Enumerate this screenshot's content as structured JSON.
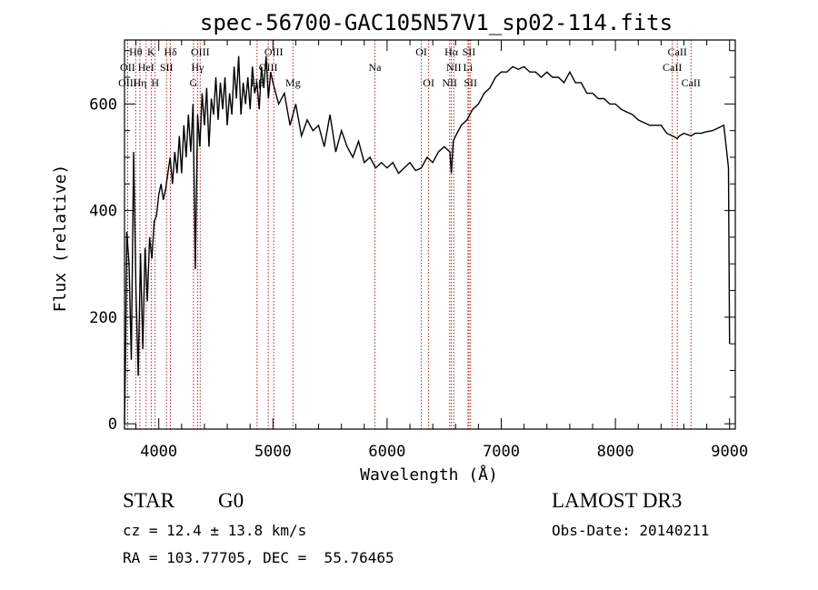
{
  "chart_data": {
    "type": "line",
    "title": "spec-56700-GAC105N57V1_sp02-114.fits",
    "xlabel": "Wavelength (Å)",
    "ylabel": "Flux (relative)",
    "xlim": [
      3700,
      9050
    ],
    "ylim": [
      -10,
      720
    ],
    "xticks": [
      4000,
      5000,
      6000,
      7000,
      8000,
      9000
    ],
    "yticks": [
      0,
      200,
      400,
      600
    ],
    "series": [
      {
        "name": "flux",
        "x": [
          3700,
          3710,
          3720,
          3740,
          3760,
          3780,
          3800,
          3820,
          3840,
          3860,
          3880,
          3900,
          3920,
          3940,
          3960,
          3980,
          4000,
          4020,
          4040,
          4060,
          4080,
          4100,
          4120,
          4140,
          4160,
          4180,
          4200,
          4220,
          4240,
          4260,
          4280,
          4300,
          4320,
          4340,
          4360,
          4380,
          4400,
          4420,
          4440,
          4460,
          4480,
          4500,
          4520,
          4540,
          4560,
          4580,
          4600,
          4620,
          4640,
          4660,
          4680,
          4700,
          4720,
          4740,
          4760,
          4780,
          4800,
          4820,
          4840,
          4860,
          4880,
          4900,
          4920,
          4940,
          4960,
          4980,
          5000,
          5050,
          5100,
          5150,
          5200,
          5250,
          5300,
          5350,
          5400,
          5450,
          5500,
          5550,
          5600,
          5650,
          5700,
          5750,
          5800,
          5850,
          5900,
          5950,
          6000,
          6050,
          6100,
          6150,
          6200,
          6250,
          6300,
          6350,
          6400,
          6450,
          6500,
          6550,
          6563,
          6580,
          6600,
          6650,
          6700,
          6750,
          6800,
          6850,
          6900,
          6950,
          7000,
          7050,
          7100,
          7150,
          7200,
          7250,
          7300,
          7350,
          7400,
          7450,
          7500,
          7550,
          7600,
          7650,
          7700,
          7750,
          7800,
          7850,
          7900,
          7950,
          8000,
          8050,
          8100,
          8150,
          8200,
          8250,
          8300,
          8350,
          8400,
          8450,
          8500,
          8542,
          8560,
          8600,
          8662,
          8700,
          8750,
          8800,
          8850,
          8900,
          8950,
          8990,
          9000
        ],
        "values": [
          0,
          150,
          360,
          300,
          120,
          510,
          250,
          90,
          320,
          140,
          330,
          230,
          350,
          310,
          380,
          390,
          430,
          450,
          420,
          440,
          470,
          500,
          450,
          510,
          470,
          540,
          470,
          560,
          500,
          580,
          510,
          600,
          290,
          580,
          520,
          620,
          560,
          630,
          520,
          610,
          580,
          650,
          570,
          640,
          590,
          650,
          560,
          620,
          580,
          670,
          610,
          690,
          580,
          640,
          600,
          650,
          590,
          670,
          620,
          640,
          590,
          670,
          630,
          690,
          610,
          660,
          640,
          600,
          620,
          560,
          600,
          540,
          570,
          550,
          560,
          520,
          580,
          510,
          550,
          520,
          500,
          530,
          490,
          500,
          480,
          490,
          480,
          490,
          470,
          480,
          490,
          475,
          480,
          500,
          490,
          510,
          520,
          510,
          470,
          530,
          540,
          560,
          570,
          590,
          600,
          620,
          630,
          650,
          660,
          660,
          670,
          665,
          670,
          660,
          660,
          650,
          660,
          650,
          650,
          640,
          660,
          640,
          640,
          620,
          620,
          610,
          610,
          600,
          600,
          590,
          585,
          580,
          570,
          565,
          560,
          560,
          560,
          545,
          540,
          535,
          540,
          545,
          540,
          545,
          545,
          548,
          550,
          555,
          560,
          480,
          150
        ]
      }
    ],
    "emission_lines": [
      {
        "label": "Hθ",
        "x": 3798,
        "row": 1
      },
      {
        "label": "K",
        "x": 3934,
        "row": 1
      },
      {
        "label": "Hδ",
        "x": 4102,
        "row": 1
      },
      {
        "label": "OIII",
        "x": 4363,
        "row": 1
      },
      {
        "label": "OIII",
        "x": 5007,
        "row": 1
      },
      {
        "label": "OI",
        "x": 6300,
        "row": 1
      },
      {
        "label": "Hα",
        "x": 6563,
        "row": 1
      },
      {
        "label": "SII",
        "x": 6717,
        "row": 1
      },
      {
        "label": "CaII",
        "x": 8542,
        "row": 1
      },
      {
        "label": "OII",
        "x": 3727,
        "row": 2
      },
      {
        "label": "HeI",
        "x": 3889,
        "row": 2
      },
      {
        "label": "SII",
        "x": 4068,
        "row": 2
      },
      {
        "label": "Hγ",
        "x": 4340,
        "row": 2
      },
      {
        "label": "OIII",
        "x": 4959,
        "row": 2
      },
      {
        "label": "Na",
        "x": 5893,
        "row": 2
      },
      {
        "label": "NII",
        "x": 6584,
        "row": 2
      },
      {
        "label": "Li",
        "x": 6708,
        "row": 2
      },
      {
        "label": "CaII",
        "x": 8498,
        "row": 2
      },
      {
        "label": "OIII",
        "x": 3727,
        "row": 3
      },
      {
        "label": "Hη",
        "x": 3835,
        "row": 3
      },
      {
        "label": "H",
        "x": 3968,
        "row": 3
      },
      {
        "label": "G",
        "x": 4304,
        "row": 3
      },
      {
        "label": "Hβ",
        "x": 4861,
        "row": 3
      },
      {
        "label": "Mg",
        "x": 5175,
        "row": 3
      },
      {
        "label": "OI",
        "x": 6364,
        "row": 3
      },
      {
        "label": "NII",
        "x": 6548,
        "row": 3
      },
      {
        "label": "SII",
        "x": 6731,
        "row": 3
      },
      {
        "label": "CaII",
        "x": 8662,
        "row": 3
      }
    ]
  },
  "info": {
    "class_label": "STAR",
    "subclass": "G0",
    "survey": "LAMOST DR3",
    "cz": "cz = 12.4 ± 13.8 km/s",
    "obs_date": "Obs-Date: 20140211",
    "coords": "RA = 103.77705, DEC =  55.76465"
  },
  "colors": {
    "line": "#000000",
    "marker_lines": "#b22222"
  }
}
